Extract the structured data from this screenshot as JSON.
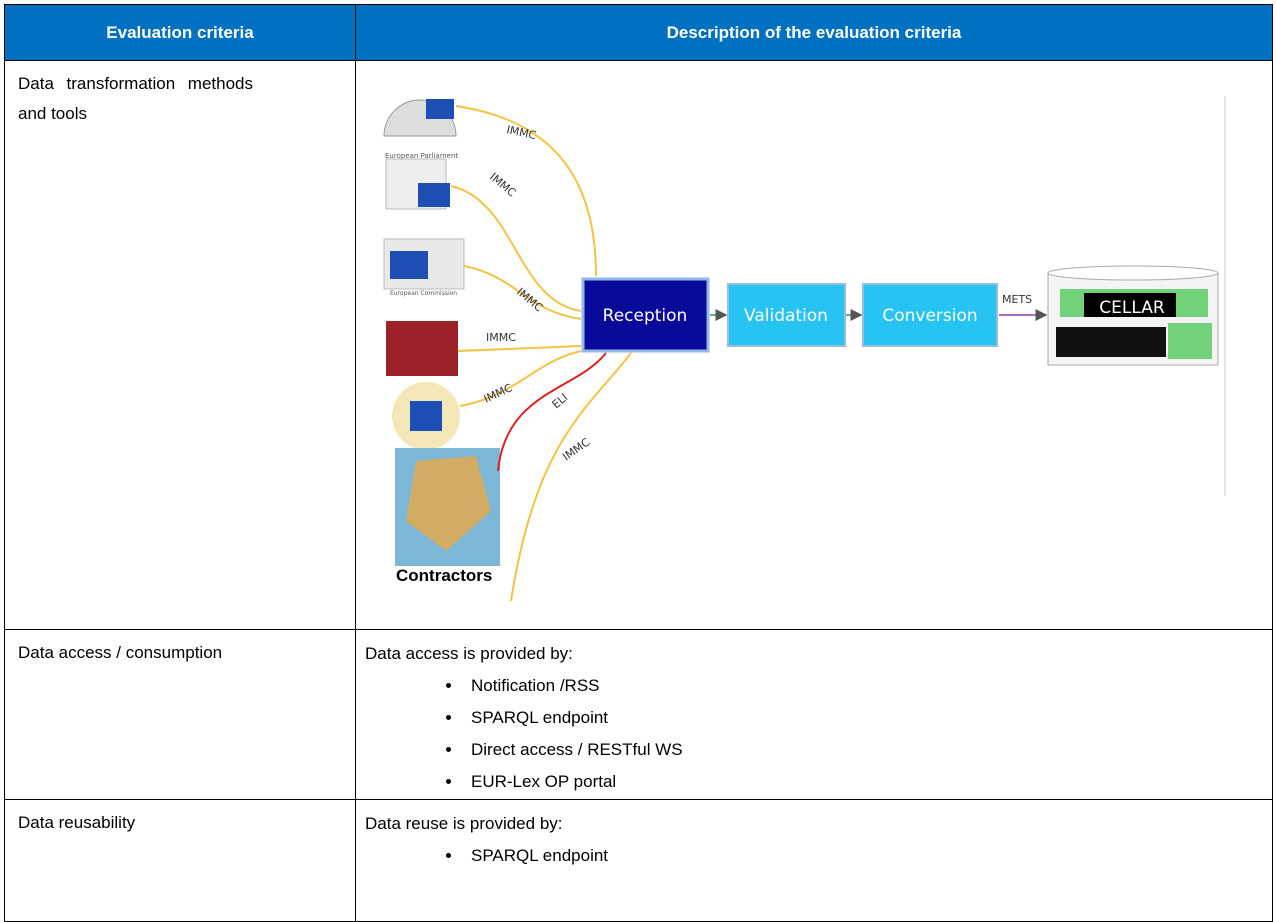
{
  "table": {
    "header": [
      "Evaluation criteria",
      "Description of the evaluation criteria"
    ],
    "rows": [
      {
        "criterion": "Data transformation methods and tools",
        "diagram": {
          "sources": [
            "European Parliament",
            "European Commission",
            "Contractors"
          ],
          "edge_labels": [
            "IMMC",
            "IMMC",
            "IMMC",
            "IMMC",
            "IMMC",
            "ELI",
            "IMMC",
            "METS"
          ],
          "boxes": [
            "Reception",
            "Validation",
            "Conversion",
            "CELLAR"
          ]
        }
      },
      {
        "criterion": "Data access / consumption",
        "intro": "Data access is provided by:",
        "items": [
          "Notification /RSS",
          "SPARQL endpoint",
          "Direct access / RESTful WS",
          "EUR-Lex OP portal"
        ]
      },
      {
        "criterion": "Data reusability",
        "intro": "Data reuse is provided by:",
        "items": [
          "SPARQL endpoint"
        ]
      }
    ]
  }
}
